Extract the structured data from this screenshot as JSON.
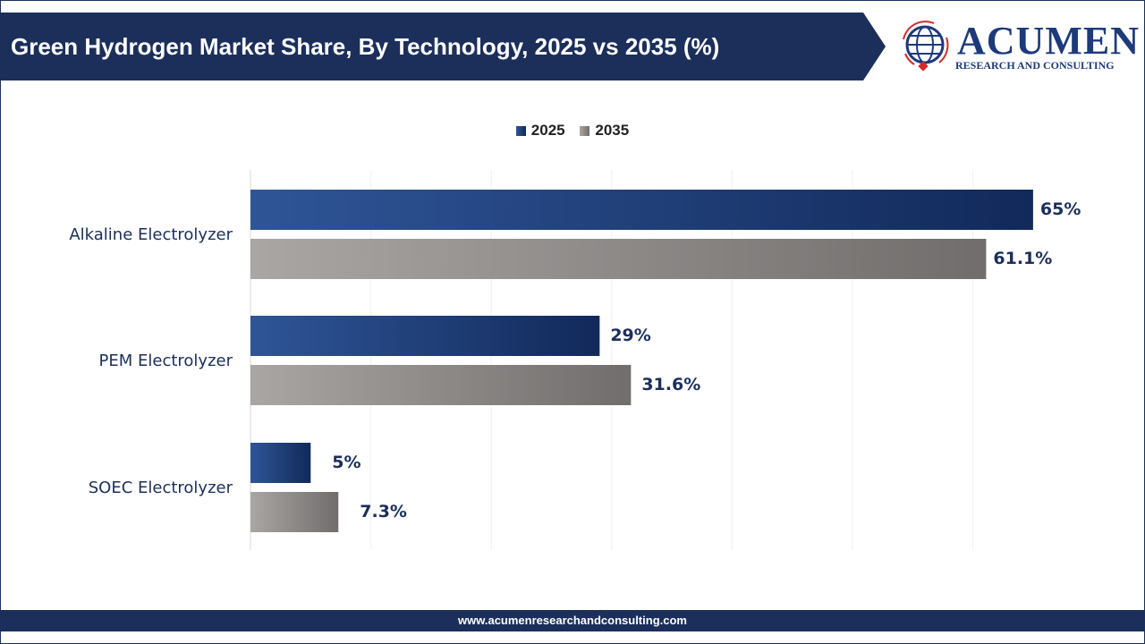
{
  "header": {
    "title": "Green Hydrogen Market Share, By Technology, 2025 vs 2035 (%)"
  },
  "logo": {
    "name": "ACUMEN",
    "subtitle": "RESEARCH AND CONSULTING"
  },
  "footer": {
    "url": "www.acumenresearchandconsulting.com"
  },
  "colors": {
    "navy": "#1b2f5a",
    "series_2025_light": "#2f5597",
    "series_2025_dark": "#12295a",
    "series_2035_light": "#aaa6a4",
    "series_2035_dark": "#716d6c",
    "accent_red": "#d42a2a"
  },
  "chart_data": {
    "type": "bar",
    "orientation": "horizontal",
    "title": "Green Hydrogen Market Share, By Technology, 2025 vs 2035 (%)",
    "categories": [
      "Alkaline Electrolyzer",
      "PEM Electrolyzer",
      "SOEC Electrolyzer"
    ],
    "series": [
      {
        "name": "2025",
        "values": [
          65,
          29,
          5
        ],
        "labels": [
          "65%",
          "29%",
          "5%"
        ]
      },
      {
        "name": "2035",
        "values": [
          61.1,
          31.6,
          7.3
        ],
        "labels": [
          "61.1%",
          "31.6%",
          "7.3%"
        ]
      }
    ],
    "xlim": [
      0,
      70
    ],
    "grid": true,
    "legend": "top-center"
  }
}
